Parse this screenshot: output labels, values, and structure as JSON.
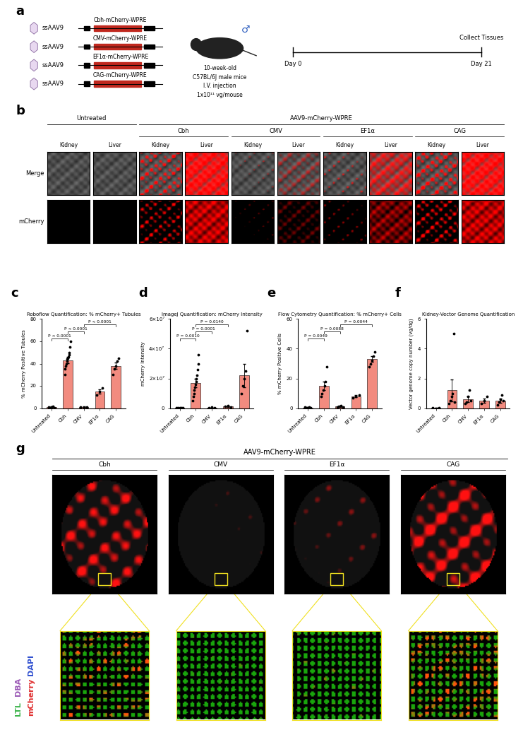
{
  "panels": {
    "a": {
      "panel_label": "a",
      "vector": "ssAAV9",
      "constructs": [
        "Cbh-mCherry-WPRE",
        "CMV-mCherry-WPRE",
        "EF1α-mCherry-WPRE",
        "CAG-mCherry-WPRE"
      ],
      "sex_symbol": "♂",
      "mouse": [
        "10-week-old",
        "C57BL/6J male mice",
        "I.V. injection",
        "1x10¹¹ vg/mouse"
      ],
      "timeline": {
        "start": "Day 0",
        "end": "Day 21",
        "event": "Collect Tissues"
      }
    },
    "b": {
      "panel_label": "b",
      "untreated": "Untreated",
      "treated": "AAV9-mCherry-WPRE",
      "promoters": [
        "Cbh",
        "CMV",
        "EF1α",
        "CAG"
      ],
      "tissues": [
        "Kidney",
        "Liver"
      ],
      "rows": [
        "Merge",
        "mCherry"
      ]
    },
    "g": {
      "panel_label": "g",
      "title": "AAV9-mCherry-WPRE",
      "promoters": [
        "Cbh",
        "CMV",
        "EF1α",
        "CAG"
      ],
      "stains": [
        {
          "name": "LTL",
          "color": "#3cb44b"
        },
        {
          "name": "DBA",
          "color": "#9b59b6"
        },
        {
          "name": "mCherry",
          "color": "#e03030"
        },
        {
          "name": "DAPI",
          "color": "#3050d0"
        }
      ]
    }
  },
  "chart_data": [
    {
      "type": "bar",
      "panel_label": "c",
      "title": "Roboflow Quantification: % mCherry+ Tubules",
      "y_label": "% mCherry Positive Tubules",
      "categories": [
        "Untreated",
        "Cbh",
        "CMV",
        "EF1α",
        "CAG"
      ],
      "values": [
        1,
        43,
        1,
        15,
        38
      ],
      "errors": [
        0.3,
        2.8,
        0.3,
        1.8,
        3
      ],
      "points": [
        [
          1,
          0.5,
          1,
          1.5,
          0.5
        ],
        [
          30,
          35,
          38,
          40,
          42,
          44,
          45,
          46,
          48,
          50,
          55,
          60
        ],
        [
          1,
          0.5,
          1
        ],
        [
          12,
          15,
          18
        ],
        [
          30,
          35,
          38,
          42,
          45
        ]
      ],
      "color": "#f28b7f",
      "ylim": [
        0,
        80
      ],
      "yticks": [
        0,
        20,
        40,
        60,
        80
      ],
      "comparisons": [
        {
          "between": [
            "Untreated",
            "Cbh"
          ],
          "label": "P < 0.0001"
        },
        {
          "between": [
            "Cbh",
            "CMV"
          ],
          "label": "P < 0.0001"
        },
        {
          "between": [
            "CMV",
            "CAG"
          ],
          "label": "P < 0.0001"
        }
      ]
    },
    {
      "type": "bar",
      "panel_label": "d",
      "title": "ImageJ Quantification: mCherry Intensity",
      "y_label": "mCherry Intensity",
      "categories": [
        "Untreated",
        "Cbh",
        "CMV",
        "EF1α",
        "CAG"
      ],
      "values": [
        200000,
        17000000,
        400000,
        1100000,
        22000000
      ],
      "errors": [
        50000,
        2800000,
        60000,
        200000,
        8000000
      ],
      "points": [
        [
          200000,
          100000,
          300000,
          150000,
          100000
        ],
        [
          5000000,
          8000000,
          10000000,
          12000000,
          14000000,
          16000000,
          18000000,
          20000000,
          22000000,
          26000000,
          30000000,
          36000000
        ],
        [
          300000,
          500000,
          400000
        ],
        [
          1000000,
          1500000,
          800000
        ],
        [
          10000000,
          15000000,
          20000000,
          25000000,
          52000000
        ]
      ],
      "color": "#f28b7f",
      "ylim": [
        0,
        60000000
      ],
      "yticks": [
        0,
        {
          "value": 20000000,
          "label": "2×10⁷"
        },
        {
          "value": 40000000,
          "label": "4×10⁷"
        },
        {
          "value": 60000000,
          "label": "6×10⁷"
        }
      ],
      "comparisons": [
        {
          "between": [
            "Untreated",
            "Cbh"
          ],
          "label": "P = 0.0010"
        },
        {
          "between": [
            "Cbh",
            "CMV"
          ],
          "label": "P = 0.0001"
        },
        {
          "between": [
            "Cbh",
            "EF1α"
          ],
          "label": "P = 0.0140"
        }
      ]
    },
    {
      "type": "bar",
      "panel_label": "e",
      "title": "Flow Cytometry Quantification: % mCherry+ Cells",
      "y_label": "% mCherry Positive Cells",
      "categories": [
        "Untreated",
        "Cbh",
        "CMV",
        "EF1α",
        "CAG"
      ],
      "values": [
        0.4,
        15,
        1,
        8,
        33
      ],
      "errors": [
        0.1,
        3,
        0.3,
        0.6,
        2
      ],
      "points": [
        [
          0.5,
          0.3,
          0.4,
          0.6,
          0.2
        ],
        [
          8,
          10,
          12,
          15,
          18,
          28
        ],
        [
          0.5,
          1,
          1.5,
          0.8
        ],
        [
          7,
          8,
          9
        ],
        [
          28,
          30,
          32,
          35,
          38
        ]
      ],
      "color": "#f28b7f",
      "ylim": [
        0,
        60
      ],
      "yticks": [
        0,
        20,
        40,
        60
      ],
      "comparisons": [
        {
          "between": [
            "Untreated",
            "Cbh"
          ],
          "label": "P = 0.0049"
        },
        {
          "between": [
            "Cbh",
            "CMV"
          ],
          "label": "P = 0.0088"
        },
        {
          "between": [
            "CMV",
            "CAG"
          ],
          "label": "P = 0.0044"
        }
      ]
    },
    {
      "type": "bar",
      "panel_label": "f",
      "title": "Kidney-Vector Genome Quantification",
      "y_label": "Vector genome copy number (vg/dg)",
      "categories": [
        "Untreated",
        "Cbh",
        "CMV",
        "EF1α",
        "CAG"
      ],
      "values": [
        0.02,
        1.2,
        0.6,
        0.5,
        0.5
      ],
      "errors": [
        0.01,
        0.75,
        0.18,
        0.15,
        0.13
      ],
      "points": [
        [
          0.02,
          0.01
        ],
        [
          0.3,
          0.5,
          0.8,
          1.0,
          5.0,
          0.4
        ],
        [
          0.3,
          0.4,
          0.8,
          1.2,
          0.5
        ],
        [
          0.3,
          0.5,
          0.8
        ],
        [
          0.2,
          0.4,
          0.6,
          0.9,
          0.5
        ]
      ],
      "color": "#f28b7f",
      "ylim": [
        0,
        6
      ],
      "yticks": [
        0,
        2,
        4,
        6
      ],
      "comparisons": []
    }
  ]
}
